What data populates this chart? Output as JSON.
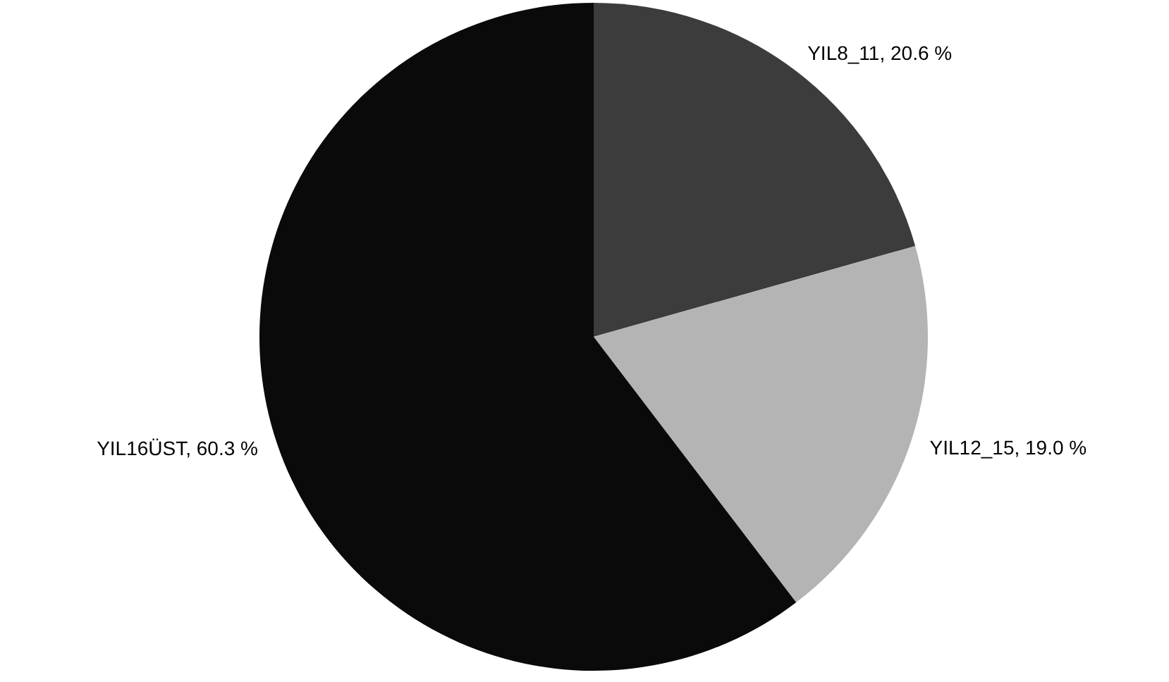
{
  "chart_data": {
    "type": "pie",
    "categories": [
      "YIL8_11",
      "YIL12_15",
      "YIL16ÜST"
    ],
    "values": [
      20.6,
      19.0,
      60.3
    ],
    "value_labels": [
      "20.6 %",
      "19.0 %",
      "60.3 %"
    ],
    "colors": [
      "#3c3c3c",
      "#b4b4b4",
      "#0a0a0a"
    ],
    "legend": false
  }
}
